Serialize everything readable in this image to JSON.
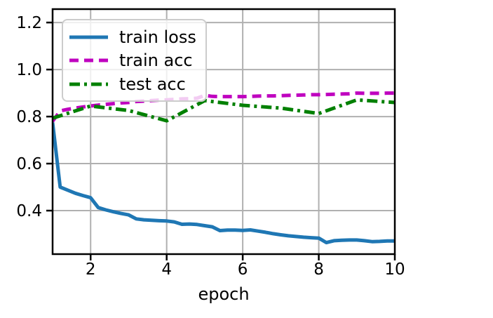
{
  "figure": {
    "background": "#ffffff",
    "grid_color": "#b0b0b0",
    "spine_color": "#000000",
    "tick_label_color": "#000000",
    "legend": {
      "background": "rgba(255,255,255,0.8)",
      "border_color": "#cccccc"
    }
  },
  "chart_data": {
    "type": "line",
    "title": "",
    "xlabel": "epoch",
    "ylabel": "",
    "xlim": [
      1,
      10
    ],
    "ylim": [
      0.215,
      1.257
    ],
    "grid": true,
    "legend_position": "upper left",
    "xticks": {
      "values": [
        2,
        4,
        6,
        8,
        10
      ],
      "labels": [
        "2",
        "4",
        "6",
        "8",
        "10"
      ]
    },
    "yticks": {
      "values": [
        0.4,
        0.6,
        0.8,
        1.0,
        1.2
      ],
      "labels": [
        "0.4",
        "0.6",
        "0.8",
        "1.0",
        "1.2"
      ]
    },
    "series": [
      {
        "name": "train loss",
        "color": "#1f77b4",
        "linestyle": "solid",
        "x": [
          1.0,
          1.2,
          1.4,
          1.6,
          1.8,
          2.0,
          2.2,
          2.4,
          2.6,
          2.8,
          3.0,
          3.2,
          3.4,
          3.6,
          3.8,
          4.0,
          4.2,
          4.4,
          4.6,
          4.8,
          5.0,
          5.2,
          5.4,
          5.6,
          5.8,
          6.0,
          6.2,
          6.4,
          6.6,
          6.8,
          7.0,
          7.2,
          7.4,
          7.6,
          7.8,
          8.0,
          8.2,
          8.4,
          8.6,
          8.8,
          9.0,
          9.2,
          9.4,
          9.6,
          9.8,
          10.0
        ],
        "y": [
          0.775,
          0.5,
          0.487,
          0.474,
          0.464,
          0.455,
          0.413,
          0.403,
          0.395,
          0.388,
          0.382,
          0.365,
          0.361,
          0.359,
          0.357,
          0.356,
          0.352,
          0.342,
          0.343,
          0.341,
          0.336,
          0.331,
          0.315,
          0.317,
          0.317,
          0.316,
          0.318,
          0.313,
          0.308,
          0.302,
          0.297,
          0.293,
          0.29,
          0.287,
          0.285,
          0.283,
          0.264,
          0.272,
          0.274,
          0.275,
          0.275,
          0.272,
          0.268,
          0.269,
          0.271,
          0.271
        ]
      },
      {
        "name": "train acc",
        "color": "#bf00bf",
        "linestyle": "dashed",
        "x": [
          1.0,
          1.2,
          1.4,
          1.6,
          1.8,
          2.0,
          2.2,
          2.4,
          2.6,
          2.8,
          3.0,
          3.2,
          3.4,
          3.6,
          3.8,
          4.0,
          4.2,
          4.4,
          4.6,
          4.8,
          5.0,
          5.2,
          5.4,
          5.6,
          5.8,
          6.0,
          6.2,
          6.4,
          6.6,
          6.8,
          7.0,
          7.2,
          7.4,
          7.6,
          7.8,
          8.0,
          8.2,
          8.4,
          8.6,
          8.8,
          9.0,
          9.2,
          9.4,
          9.6,
          9.8,
          10.0
        ],
        "y": [
          0.78,
          0.824,
          0.831,
          0.836,
          0.841,
          0.845,
          0.849,
          0.852,
          0.855,
          0.858,
          0.86,
          0.864,
          0.866,
          0.868,
          0.87,
          0.871,
          0.873,
          0.875,
          0.876,
          0.878,
          0.89,
          0.886,
          0.885,
          0.885,
          0.885,
          0.885,
          0.886,
          0.887,
          0.888,
          0.888,
          0.889,
          0.89,
          0.891,
          0.892,
          0.893,
          0.893,
          0.894,
          0.895,
          0.896,
          0.897,
          0.9,
          0.899,
          0.899,
          0.899,
          0.9,
          0.9
        ]
      },
      {
        "name": "test acc",
        "color": "#008000",
        "linestyle": "dashdot",
        "x": [
          1,
          2,
          3,
          4,
          5,
          6,
          7,
          8,
          9,
          10
        ],
        "y": [
          0.793,
          0.845,
          0.826,
          0.782,
          0.868,
          0.848,
          0.836,
          0.813,
          0.871,
          0.86
        ]
      }
    ]
  }
}
